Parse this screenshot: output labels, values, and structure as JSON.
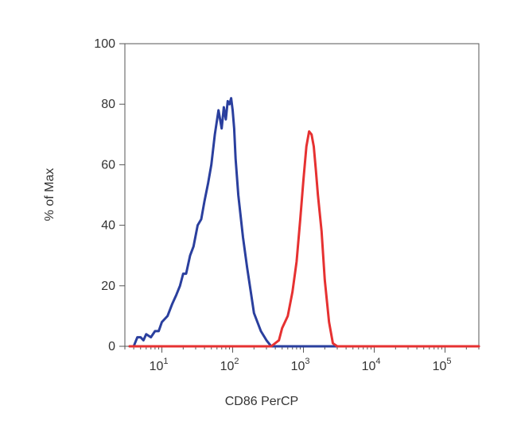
{
  "chart_data": {
    "type": "line",
    "title": "",
    "xlabel": "CD86 PerCP",
    "ylabel": "% of Max",
    "x_scale": "log",
    "xlim": [
      3,
      300000
    ],
    "ylim": [
      0,
      100
    ],
    "x_ticks": [
      {
        "value": 10,
        "base": "10",
        "exp": "1"
      },
      {
        "value": 100,
        "base": "10",
        "exp": "2"
      },
      {
        "value": 1000,
        "base": "10",
        "exp": "3"
      },
      {
        "value": 10000,
        "base": "10",
        "exp": "4"
      },
      {
        "value": 100000,
        "base": "10",
        "exp": "5"
      }
    ],
    "y_ticks": [
      0,
      20,
      40,
      60,
      80,
      100
    ],
    "grid": false,
    "legend": "none",
    "series": [
      {
        "color": "#2a3f9e",
        "x": [
          3.5,
          4,
          4.5,
          5,
          5.5,
          6,
          7,
          8,
          9,
          10,
          12,
          14,
          16,
          18,
          20,
          22,
          25,
          28,
          32,
          36,
          40,
          45,
          50,
          56,
          63,
          70,
          75,
          80,
          85,
          90,
          95,
          100,
          105,
          110,
          120,
          140,
          160,
          180,
          200,
          250,
          300,
          350,
          400,
          500,
          1000,
          10000,
          100000,
          300000
        ],
        "y": [
          0,
          0,
          3,
          3,
          2,
          4,
          3,
          5,
          5,
          8,
          10,
          14,
          17,
          20,
          24,
          24,
          30,
          33,
          40,
          42,
          48,
          54,
          60,
          70,
          78,
          72,
          79,
          75,
          81,
          80,
          82,
          78,
          72,
          62,
          50,
          36,
          26,
          18,
          11,
          5,
          2,
          0,
          0,
          0,
          0,
          0,
          0,
          0
        ]
      },
      {
        "color": "#e63131",
        "x": [
          3.5,
          100,
          350,
          450,
          500,
          600,
          700,
          800,
          900,
          1000,
          1100,
          1200,
          1300,
          1400,
          1500,
          1600,
          1800,
          2000,
          2300,
          2600,
          3000,
          10000,
          100000,
          300000
        ],
        "y": [
          0,
          0,
          0,
          2,
          6,
          10,
          18,
          28,
          42,
          55,
          66,
          71,
          70,
          66,
          58,
          50,
          38,
          22,
          8,
          1,
          0,
          0,
          0,
          0
        ]
      }
    ]
  }
}
